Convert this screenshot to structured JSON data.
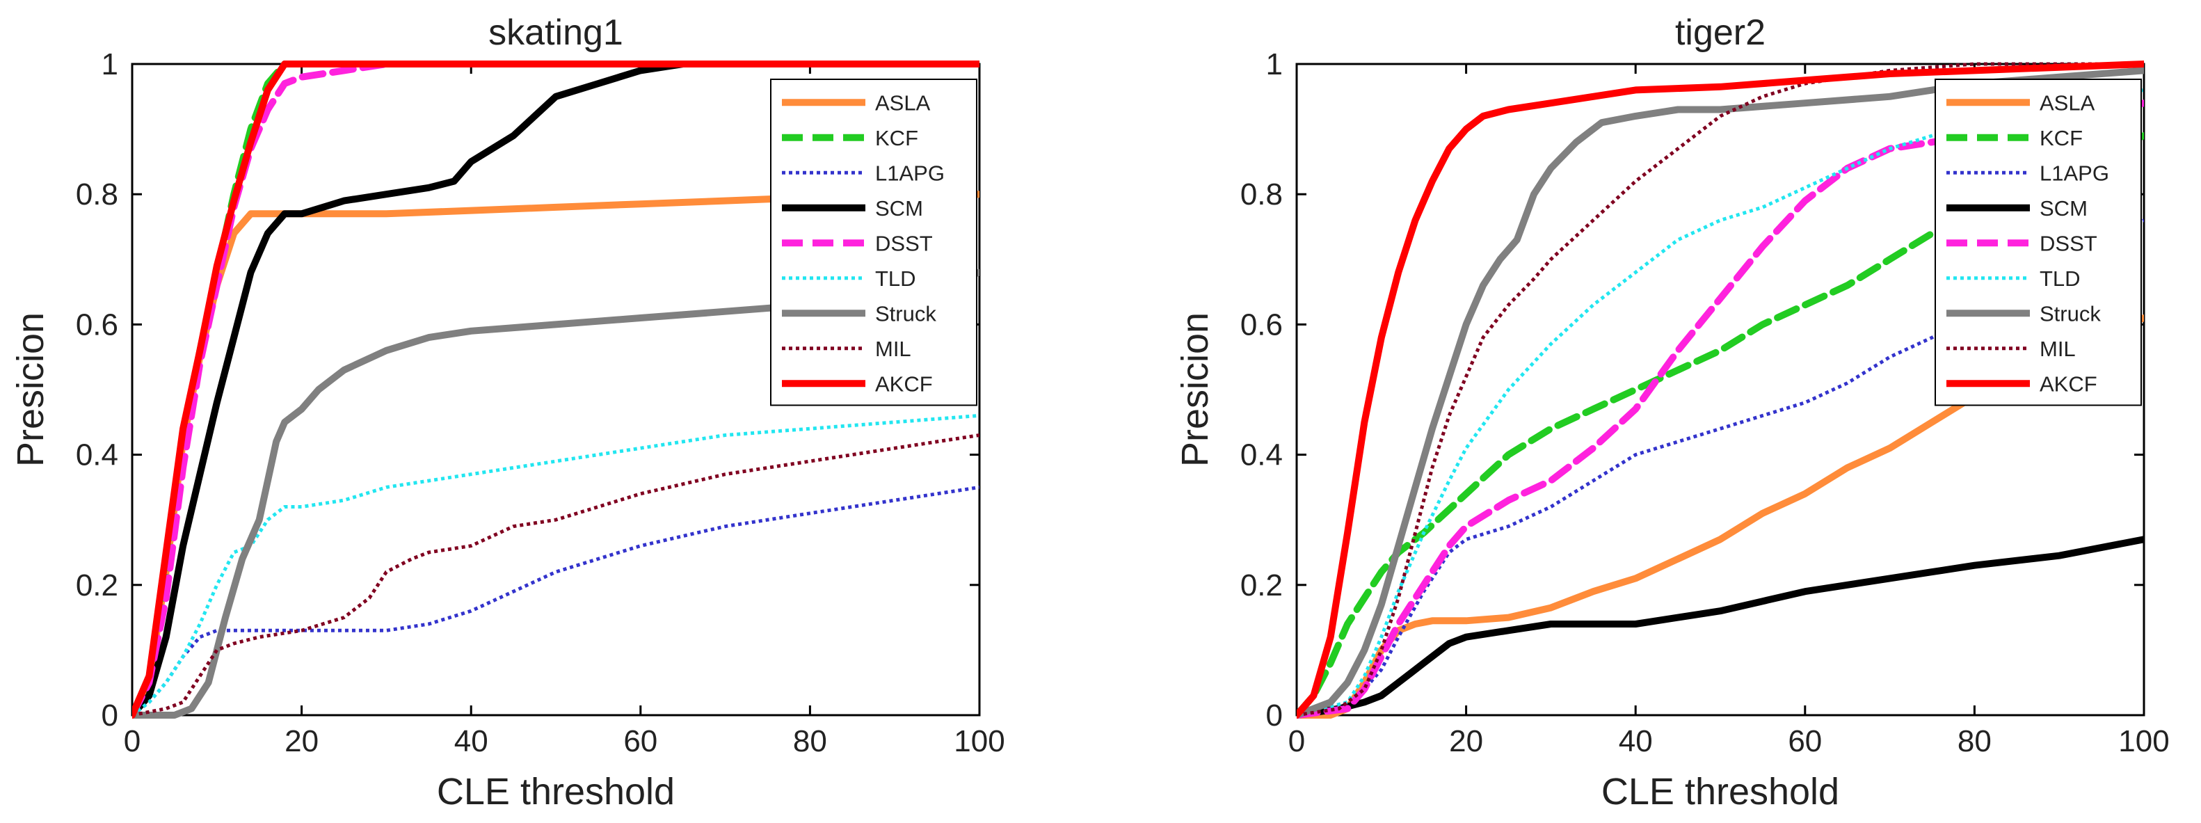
{
  "chart_data": [
    {
      "type": "line",
      "title": "skating1",
      "xlabel": "CLE threshold",
      "ylabel": "Presicion",
      "xlim": [
        0,
        100
      ],
      "ylim": [
        0,
        1
      ],
      "xticks": [
        "0",
        "20",
        "40",
        "60",
        "80",
        "100"
      ],
      "yticks": [
        "0",
        "0.2",
        "0.4",
        "0.6",
        "0.8",
        "1"
      ],
      "grid": false,
      "legend_position": "top-right",
      "series": [
        {
          "name": "ASLA",
          "color": "#ff8c3a",
          "style": "solid",
          "x": [
            0,
            2,
            4,
            6,
            8,
            10,
            12,
            14,
            16,
            18,
            20,
            30,
            40,
            50,
            60,
            70,
            80,
            90,
            100
          ],
          "y": [
            0,
            0.05,
            0.22,
            0.42,
            0.55,
            0.66,
            0.74,
            0.77,
            0.77,
            0.77,
            0.77,
            0.77,
            0.775,
            0.78,
            0.785,
            0.79,
            0.795,
            0.798,
            0.8
          ]
        },
        {
          "name": "KCF",
          "color": "#22cc22",
          "style": "dashed",
          "x": [
            0,
            2,
            4,
            6,
            8,
            10,
            12,
            14,
            16,
            18,
            20,
            30,
            40,
            60,
            80,
            100
          ],
          "y": [
            0,
            0.05,
            0.2,
            0.42,
            0.56,
            0.68,
            0.8,
            0.9,
            0.97,
            1.0,
            1.0,
            1.0,
            1.0,
            1.0,
            1.0,
            1.0
          ]
        },
        {
          "name": "L1APG",
          "color": "#3333cc",
          "style": "dotted",
          "x": [
            0,
            2,
            4,
            6,
            8,
            10,
            15,
            20,
            25,
            30,
            35,
            40,
            45,
            50,
            60,
            70,
            80,
            90,
            100
          ],
          "y": [
            0,
            0.02,
            0.05,
            0.09,
            0.12,
            0.13,
            0.13,
            0.13,
            0.13,
            0.13,
            0.14,
            0.16,
            0.19,
            0.22,
            0.26,
            0.29,
            0.31,
            0.33,
            0.35
          ]
        },
        {
          "name": "SCM",
          "color": "#000000",
          "style": "solid",
          "x": [
            0,
            2,
            4,
            6,
            8,
            10,
            12,
            14,
            16,
            18,
            20,
            25,
            30,
            35,
            38,
            40,
            45,
            50,
            55,
            60,
            65,
            70,
            80,
            100
          ],
          "y": [
            0,
            0.03,
            0.12,
            0.26,
            0.37,
            0.48,
            0.58,
            0.68,
            0.74,
            0.77,
            0.77,
            0.79,
            0.8,
            0.81,
            0.82,
            0.85,
            0.89,
            0.95,
            0.97,
            0.99,
            1.0,
            1.0,
            1.0,
            1.0
          ]
        },
        {
          "name": "DSST",
          "color": "#ff22dd",
          "style": "dashed",
          "x": [
            0,
            2,
            4,
            6,
            8,
            10,
            12,
            14,
            16,
            18,
            20,
            25,
            30,
            40,
            60,
            80,
            100
          ],
          "y": [
            0,
            0.05,
            0.18,
            0.38,
            0.54,
            0.66,
            0.78,
            0.87,
            0.93,
            0.97,
            0.98,
            0.99,
            1.0,
            1.0,
            1.0,
            1.0,
            1.0
          ]
        },
        {
          "name": "TLD",
          "color": "#22e6f0",
          "style": "dotted",
          "x": [
            0,
            2,
            4,
            6,
            8,
            10,
            12,
            14,
            16,
            18,
            20,
            25,
            30,
            40,
            50,
            60,
            70,
            80,
            90,
            100
          ],
          "y": [
            0,
            0.02,
            0.05,
            0.09,
            0.14,
            0.2,
            0.25,
            0.26,
            0.3,
            0.32,
            0.32,
            0.33,
            0.35,
            0.37,
            0.39,
            0.41,
            0.43,
            0.44,
            0.45,
            0.46
          ]
        },
        {
          "name": "Struck",
          "color": "#808080",
          "style": "solid",
          "x": [
            0,
            5,
            7,
            9,
            11,
            13,
            15,
            17,
            18,
            20,
            22,
            25,
            30,
            35,
            40,
            45,
            50,
            55,
            60,
            65,
            70,
            80,
            90,
            100
          ],
          "y": [
            0,
            0,
            0.01,
            0.05,
            0.15,
            0.24,
            0.3,
            0.42,
            0.45,
            0.47,
            0.5,
            0.53,
            0.56,
            0.58,
            0.59,
            0.595,
            0.6,
            0.605,
            0.61,
            0.615,
            0.62,
            0.63,
            0.64,
            0.68
          ]
        },
        {
          "name": "MIL",
          "color": "#800020",
          "style": "dotted",
          "x": [
            0,
            4,
            6,
            8,
            10,
            12,
            15,
            20,
            25,
            28,
            30,
            33,
            35,
            40,
            45,
            50,
            55,
            60,
            70,
            80,
            90,
            100
          ],
          "y": [
            0,
            0.01,
            0.02,
            0.06,
            0.1,
            0.11,
            0.12,
            0.13,
            0.15,
            0.18,
            0.22,
            0.24,
            0.25,
            0.26,
            0.29,
            0.3,
            0.32,
            0.34,
            0.37,
            0.39,
            0.41,
            0.43
          ]
        },
        {
          "name": "AKCF",
          "color": "#ff0000",
          "style": "solid",
          "x": [
            0,
            2,
            4,
            6,
            8,
            10,
            12,
            14,
            16,
            18,
            20,
            40,
            60,
            80,
            100
          ],
          "y": [
            0,
            0.06,
            0.25,
            0.44,
            0.56,
            0.69,
            0.79,
            0.88,
            0.96,
            1.0,
            1.0,
            1.0,
            1.0,
            1.0,
            1.0
          ]
        }
      ]
    },
    {
      "type": "line",
      "title": "tiger2",
      "xlabel": "CLE threshold",
      "ylabel": "Presicion",
      "xlim": [
        0,
        100
      ],
      "ylim": [
        0,
        1
      ],
      "xticks": [
        "0",
        "20",
        "40",
        "60",
        "80",
        "100"
      ],
      "yticks": [
        "0",
        "0.2",
        "0.4",
        "0.6",
        "0.8",
        "1"
      ],
      "grid": false,
      "legend_position": "top-right",
      "series": [
        {
          "name": "ASLA",
          "color": "#ff8c3a",
          "style": "solid",
          "x": [
            0,
            4,
            6,
            8,
            10,
            12,
            14,
            16,
            20,
            25,
            30,
            35,
            40,
            45,
            50,
            55,
            60,
            65,
            70,
            75,
            80,
            85,
            90,
            100
          ],
          "y": [
            0,
            0,
            0.01,
            0.05,
            0.1,
            0.13,
            0.14,
            0.145,
            0.145,
            0.15,
            0.165,
            0.19,
            0.21,
            0.24,
            0.27,
            0.31,
            0.34,
            0.38,
            0.41,
            0.45,
            0.49,
            0.53,
            0.56,
            0.61
          ]
        },
        {
          "name": "KCF",
          "color": "#22cc22",
          "style": "dashed",
          "x": [
            0,
            2,
            4,
            6,
            8,
            10,
            12,
            15,
            20,
            25,
            30,
            35,
            40,
            45,
            50,
            55,
            60,
            65,
            70,
            75,
            80,
            90,
            100
          ],
          "y": [
            0,
            0.03,
            0.08,
            0.14,
            0.18,
            0.22,
            0.25,
            0.28,
            0.34,
            0.4,
            0.44,
            0.47,
            0.5,
            0.53,
            0.56,
            0.6,
            0.63,
            0.66,
            0.7,
            0.74,
            0.78,
            0.84,
            0.89
          ]
        },
        {
          "name": "L1APG",
          "color": "#3333cc",
          "style": "dotted",
          "x": [
            0,
            4,
            6,
            8,
            10,
            12,
            15,
            18,
            20,
            25,
            30,
            35,
            40,
            45,
            50,
            55,
            60,
            65,
            70,
            75,
            80,
            90,
            100
          ],
          "y": [
            0,
            0.01,
            0.02,
            0.04,
            0.07,
            0.12,
            0.19,
            0.25,
            0.27,
            0.29,
            0.32,
            0.36,
            0.4,
            0.42,
            0.44,
            0.46,
            0.48,
            0.51,
            0.55,
            0.58,
            0.62,
            0.7,
            0.76
          ]
        },
        {
          "name": "SCM",
          "color": "#000000",
          "style": "solid",
          "x": [
            0,
            5,
            8,
            10,
            12,
            15,
            18,
            20,
            25,
            30,
            35,
            40,
            45,
            50,
            55,
            60,
            65,
            70,
            75,
            80,
            90,
            100
          ],
          "y": [
            0,
            0.01,
            0.02,
            0.03,
            0.05,
            0.08,
            0.11,
            0.12,
            0.13,
            0.14,
            0.14,
            0.14,
            0.15,
            0.16,
            0.175,
            0.19,
            0.2,
            0.21,
            0.22,
            0.23,
            0.245,
            0.27
          ]
        },
        {
          "name": "DSST",
          "color": "#ff22dd",
          "style": "dashed",
          "x": [
            0,
            6,
            8,
            10,
            12,
            15,
            18,
            20,
            25,
            30,
            35,
            40,
            45,
            50,
            55,
            60,
            65,
            70,
            75,
            80,
            90,
            100
          ],
          "y": [
            0,
            0.01,
            0.04,
            0.09,
            0.14,
            0.2,
            0.26,
            0.29,
            0.33,
            0.36,
            0.41,
            0.47,
            0.56,
            0.64,
            0.72,
            0.79,
            0.84,
            0.87,
            0.88,
            0.89,
            0.91,
            0.94
          ]
        },
        {
          "name": "TLD",
          "color": "#22e6f0",
          "style": "dotted",
          "x": [
            0,
            6,
            8,
            10,
            12,
            15,
            18,
            20,
            25,
            30,
            35,
            40,
            45,
            50,
            55,
            60,
            65,
            70,
            75,
            80,
            90,
            100
          ],
          "y": [
            0,
            0.02,
            0.06,
            0.12,
            0.19,
            0.28,
            0.36,
            0.41,
            0.5,
            0.57,
            0.63,
            0.68,
            0.73,
            0.76,
            0.78,
            0.81,
            0.84,
            0.87,
            0.89,
            0.91,
            0.94,
            0.96
          ]
        },
        {
          "name": "Struck",
          "color": "#808080",
          "style": "solid",
          "x": [
            0,
            4,
            6,
            8,
            10,
            12,
            14,
            16,
            18,
            20,
            22,
            24,
            26,
            28,
            30,
            33,
            36,
            40,
            45,
            50,
            60,
            70,
            80,
            90,
            100
          ],
          "y": [
            0,
            0.02,
            0.05,
            0.1,
            0.17,
            0.26,
            0.35,
            0.44,
            0.52,
            0.6,
            0.66,
            0.7,
            0.73,
            0.8,
            0.84,
            0.88,
            0.91,
            0.92,
            0.93,
            0.93,
            0.94,
            0.95,
            0.97,
            0.98,
            0.99
          ]
        },
        {
          "name": "MIL",
          "color": "#800020",
          "style": "dotted",
          "x": [
            0,
            5,
            8,
            10,
            12,
            14,
            16,
            18,
            20,
            22,
            25,
            28,
            30,
            35,
            40,
            45,
            50,
            55,
            60,
            70,
            80,
            100
          ],
          "y": [
            0,
            0.01,
            0.04,
            0.1,
            0.18,
            0.28,
            0.38,
            0.46,
            0.52,
            0.58,
            0.63,
            0.67,
            0.7,
            0.76,
            0.82,
            0.87,
            0.92,
            0.95,
            0.97,
            0.99,
            1.0,
            1.0
          ]
        },
        {
          "name": "AKCF",
          "color": "#ff0000",
          "style": "solid",
          "x": [
            0,
            2,
            4,
            6,
            8,
            10,
            12,
            14,
            16,
            18,
            20,
            22,
            25,
            30,
            35,
            40,
            50,
            60,
            70,
            80,
            90,
            100
          ],
          "y": [
            0,
            0.03,
            0.12,
            0.28,
            0.45,
            0.58,
            0.68,
            0.76,
            0.82,
            0.87,
            0.9,
            0.92,
            0.93,
            0.94,
            0.95,
            0.96,
            0.965,
            0.975,
            0.985,
            0.99,
            0.995,
            1.0
          ]
        }
      ]
    }
  ]
}
